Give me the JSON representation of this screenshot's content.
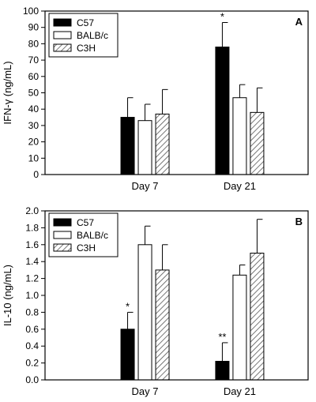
{
  "chart_data": [
    {
      "panel_label": "A",
      "type": "bar",
      "ylabel": "IFN-γ (ng/mL)",
      "ylim": [
        0,
        100
      ],
      "yticks": [
        0,
        10,
        20,
        30,
        40,
        50,
        60,
        70,
        80,
        90,
        100
      ],
      "yticklabels": [
        "0",
        "10",
        "20",
        "30",
        "40",
        "50",
        "60",
        "70",
        "80",
        "90",
        "100"
      ],
      "categories": [
        "Day 7",
        "Day 21"
      ],
      "legend_position": "top-left",
      "series": [
        {
          "name": "C57",
          "pattern": "solid-black",
          "values": [
            35,
            78
          ],
          "errors": [
            12,
            15
          ],
          "annotations": [
            "",
            "*"
          ]
        },
        {
          "name": "BALB/c",
          "pattern": "white",
          "values": [
            33,
            47
          ],
          "errors": [
            10,
            8
          ],
          "annotations": [
            "",
            ""
          ]
        },
        {
          "name": "C3H",
          "pattern": "diagonal-hatch",
          "values": [
            37,
            38
          ],
          "errors": [
            15,
            15
          ],
          "annotations": [
            "",
            ""
          ]
        }
      ]
    },
    {
      "panel_label": "B",
      "type": "bar",
      "ylabel": "IL-10 (ng/mL)",
      "ylim": [
        0,
        2.0
      ],
      "yticks": [
        0,
        0.2,
        0.4,
        0.6,
        0.8,
        1.0,
        1.2,
        1.4,
        1.6,
        1.8,
        2.0
      ],
      "yticklabels": [
        "0.0",
        "0.2",
        "0.4",
        "0.6",
        "0.8",
        "1.0",
        "1.2",
        "1.4",
        "1.6",
        "1.8",
        "2.0"
      ],
      "categories": [
        "Day 7",
        "Day 21"
      ],
      "legend_position": "top-left",
      "series": [
        {
          "name": "C57",
          "pattern": "solid-black",
          "values": [
            0.6,
            0.22
          ],
          "errors": [
            0.2,
            0.22
          ],
          "annotations": [
            "*",
            "**"
          ]
        },
        {
          "name": "BALB/c",
          "pattern": "white",
          "values": [
            1.6,
            1.24
          ],
          "errors": [
            0.22,
            0.12
          ],
          "annotations": [
            "",
            ""
          ]
        },
        {
          "name": "C3H",
          "pattern": "diagonal-hatch",
          "values": [
            1.3,
            1.5
          ],
          "errors": [
            0.3,
            0.4
          ],
          "annotations": [
            "",
            ""
          ]
        }
      ]
    }
  ]
}
